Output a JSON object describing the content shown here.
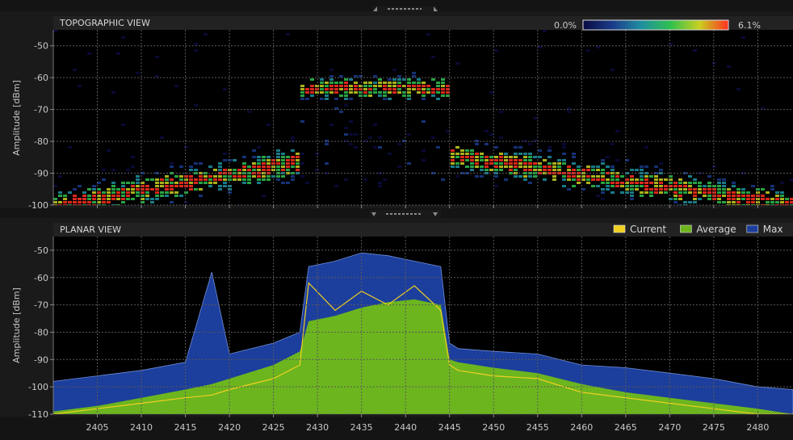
{
  "chart_data": [
    {
      "type": "heatmap",
      "title": "TOPOGRAPHIC VIEW",
      "ylabel": "Amplitude [dBm]",
      "ylim": [
        -100,
        -45
      ],
      "xlim": [
        2400,
        2484
      ],
      "yticks": [
        -50,
        -60,
        -70,
        -80,
        -90,
        -100
      ],
      "xticks": [
        2405,
        2410,
        2415,
        2420,
        2425,
        2430,
        2435,
        2440,
        2445,
        2450,
        2455,
        2460,
        2465,
        2470,
        2475,
        2480
      ],
      "grid": true,
      "colorbar": {
        "min_label": "0.0%",
        "max_label": "6.1%",
        "min": 0.0,
        "max": 6.1,
        "colors": [
          "#0a0a40",
          "#1a3a8a",
          "#1f8fa0",
          "#2fbf50",
          "#c8d020",
          "#ff3020"
        ]
      },
      "density_bands": [
        {
          "x": [
            2400,
            2428
          ],
          "y_start": -100,
          "y_end": -86,
          "shape": "rising"
        },
        {
          "x": [
            2428,
            2445
          ],
          "y_center": -63,
          "shape": "flat"
        },
        {
          "x": [
            2445,
            2484
          ],
          "y_start": -84,
          "y_end": -100,
          "shape": "falling"
        }
      ]
    },
    {
      "type": "area",
      "title": "PLANAR VIEW",
      "ylabel": "Amplitude [dBm]",
      "ylim": [
        -110,
        -45
      ],
      "xlim": [
        2400,
        2484
      ],
      "yticks": [
        -50,
        -60,
        -70,
        -80,
        -90,
        -100,
        -110
      ],
      "xticks": [
        2405,
        2410,
        2415,
        2420,
        2425,
        2430,
        2435,
        2440,
        2445,
        2450,
        2455,
        2460,
        2465,
        2470,
        2475,
        2480
      ],
      "grid": true,
      "legend": {
        "placement": "top-right"
      },
      "x": [
        2400,
        2405,
        2410,
        2415,
        2418,
        2420,
        2425,
        2428,
        2429,
        2432,
        2435,
        2438,
        2441,
        2444,
        2445,
        2446,
        2450,
        2455,
        2460,
        2465,
        2470,
        2475,
        2480,
        2484
      ],
      "series": [
        {
          "name": "Current",
          "color": "#f0d020",
          "values": [
            -110,
            -108,
            -106,
            -104,
            -103,
            -101,
            -97,
            -92,
            -62,
            -72,
            -65,
            -70,
            -63,
            -72,
            -92,
            -94,
            -96,
            -97,
            -102,
            -104,
            -106,
            -108,
            -110,
            -110
          ]
        },
        {
          "name": "Average",
          "color": "#6cb51f",
          "values": [
            -109,
            -107,
            -104,
            -101,
            -99,
            -97,
            -92,
            -87,
            -76,
            -74,
            -71,
            -69,
            -68,
            -70,
            -90,
            -91,
            -93,
            -95,
            -99,
            -102,
            -104,
            -106,
            -108,
            -110
          ]
        },
        {
          "name": "Max",
          "color": "#1c3e9c",
          "values": [
            -98,
            -96,
            -94,
            -91,
            -58,
            -88,
            -84,
            -80,
            -56,
            -54,
            -51,
            -52,
            -54,
            -56,
            -84,
            -86,
            -87,
            -88,
            -92,
            -93,
            -95,
            -97,
            -100,
            -101
          ]
        }
      ]
    }
  ]
}
